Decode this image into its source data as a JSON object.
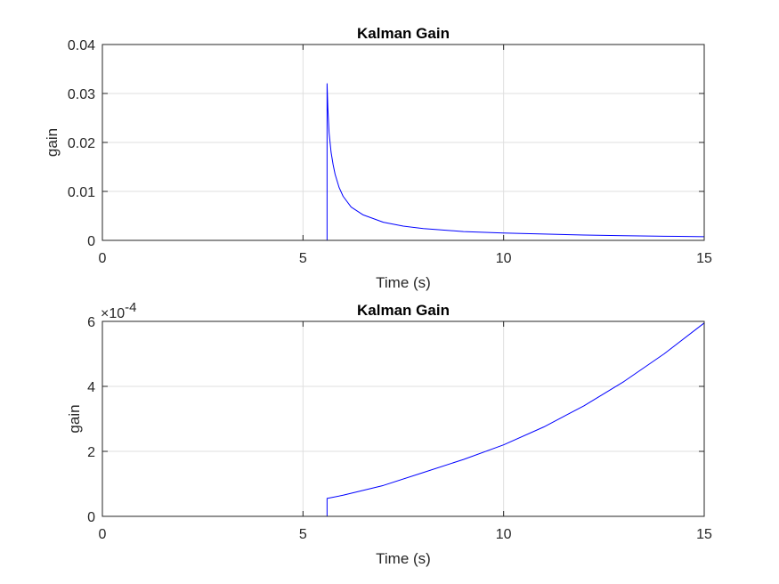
{
  "chart_data": [
    {
      "type": "line",
      "title": "Kalman Gain",
      "xlabel": "Time (s)",
      "ylabel": "gain",
      "xlim": [
        0,
        15
      ],
      "ylim": [
        0,
        0.04
      ],
      "xticks": [
        0,
        5,
        10,
        15
      ],
      "yticks": [
        0,
        0.01,
        0.02,
        0.03,
        0.04
      ],
      "xtick_labels": [
        "0",
        "5",
        "10",
        "15"
      ],
      "ytick_labels": [
        "0",
        "0.01",
        "0.02",
        "0.03",
        "0.04"
      ],
      "grid": true,
      "series": [
        {
          "color": "#0000ff",
          "x": [
            0,
            5.6,
            5.6,
            5.62,
            5.65,
            5.7,
            5.75,
            5.8,
            5.9,
            6.0,
            6.2,
            6.5,
            7.0,
            7.5,
            8.0,
            9.0,
            10.0,
            11.0,
            12.0,
            13.0,
            14.0,
            15.0
          ],
          "y": [
            0,
            0,
            0.032,
            0.027,
            0.022,
            0.018,
            0.0155,
            0.0135,
            0.0108,
            0.009,
            0.0068,
            0.0052,
            0.0037,
            0.0029,
            0.0024,
            0.0018,
            0.0015,
            0.0013,
            0.0011,
            0.00095,
            0.00085,
            0.00075
          ]
        }
      ]
    },
    {
      "type": "line",
      "title": "Kalman Gain",
      "xlabel": "Time (s)",
      "ylabel": "gain",
      "xlim": [
        0,
        15
      ],
      "ylim": [
        0,
        6
      ],
      "exponent_label": "×10",
      "exponent_power": "-4",
      "xticks": [
        0,
        5,
        10,
        15
      ],
      "yticks": [
        0,
        2,
        4,
        6
      ],
      "xtick_labels": [
        "0",
        "5",
        "10",
        "15"
      ],
      "ytick_labels": [
        "0",
        "2",
        "4",
        "6"
      ],
      "grid": true,
      "series": [
        {
          "color": "#0000ff",
          "x": [
            0,
            5.6,
            5.6,
            6.0,
            7.0,
            8.0,
            9.0,
            10.0,
            11.0,
            12.0,
            13.0,
            14.0,
            15.0
          ],
          "y": [
            0,
            0,
            0.55,
            0.65,
            0.95,
            1.35,
            1.75,
            2.2,
            2.75,
            3.4,
            4.15,
            5.0,
            5.95
          ]
        }
      ]
    }
  ]
}
